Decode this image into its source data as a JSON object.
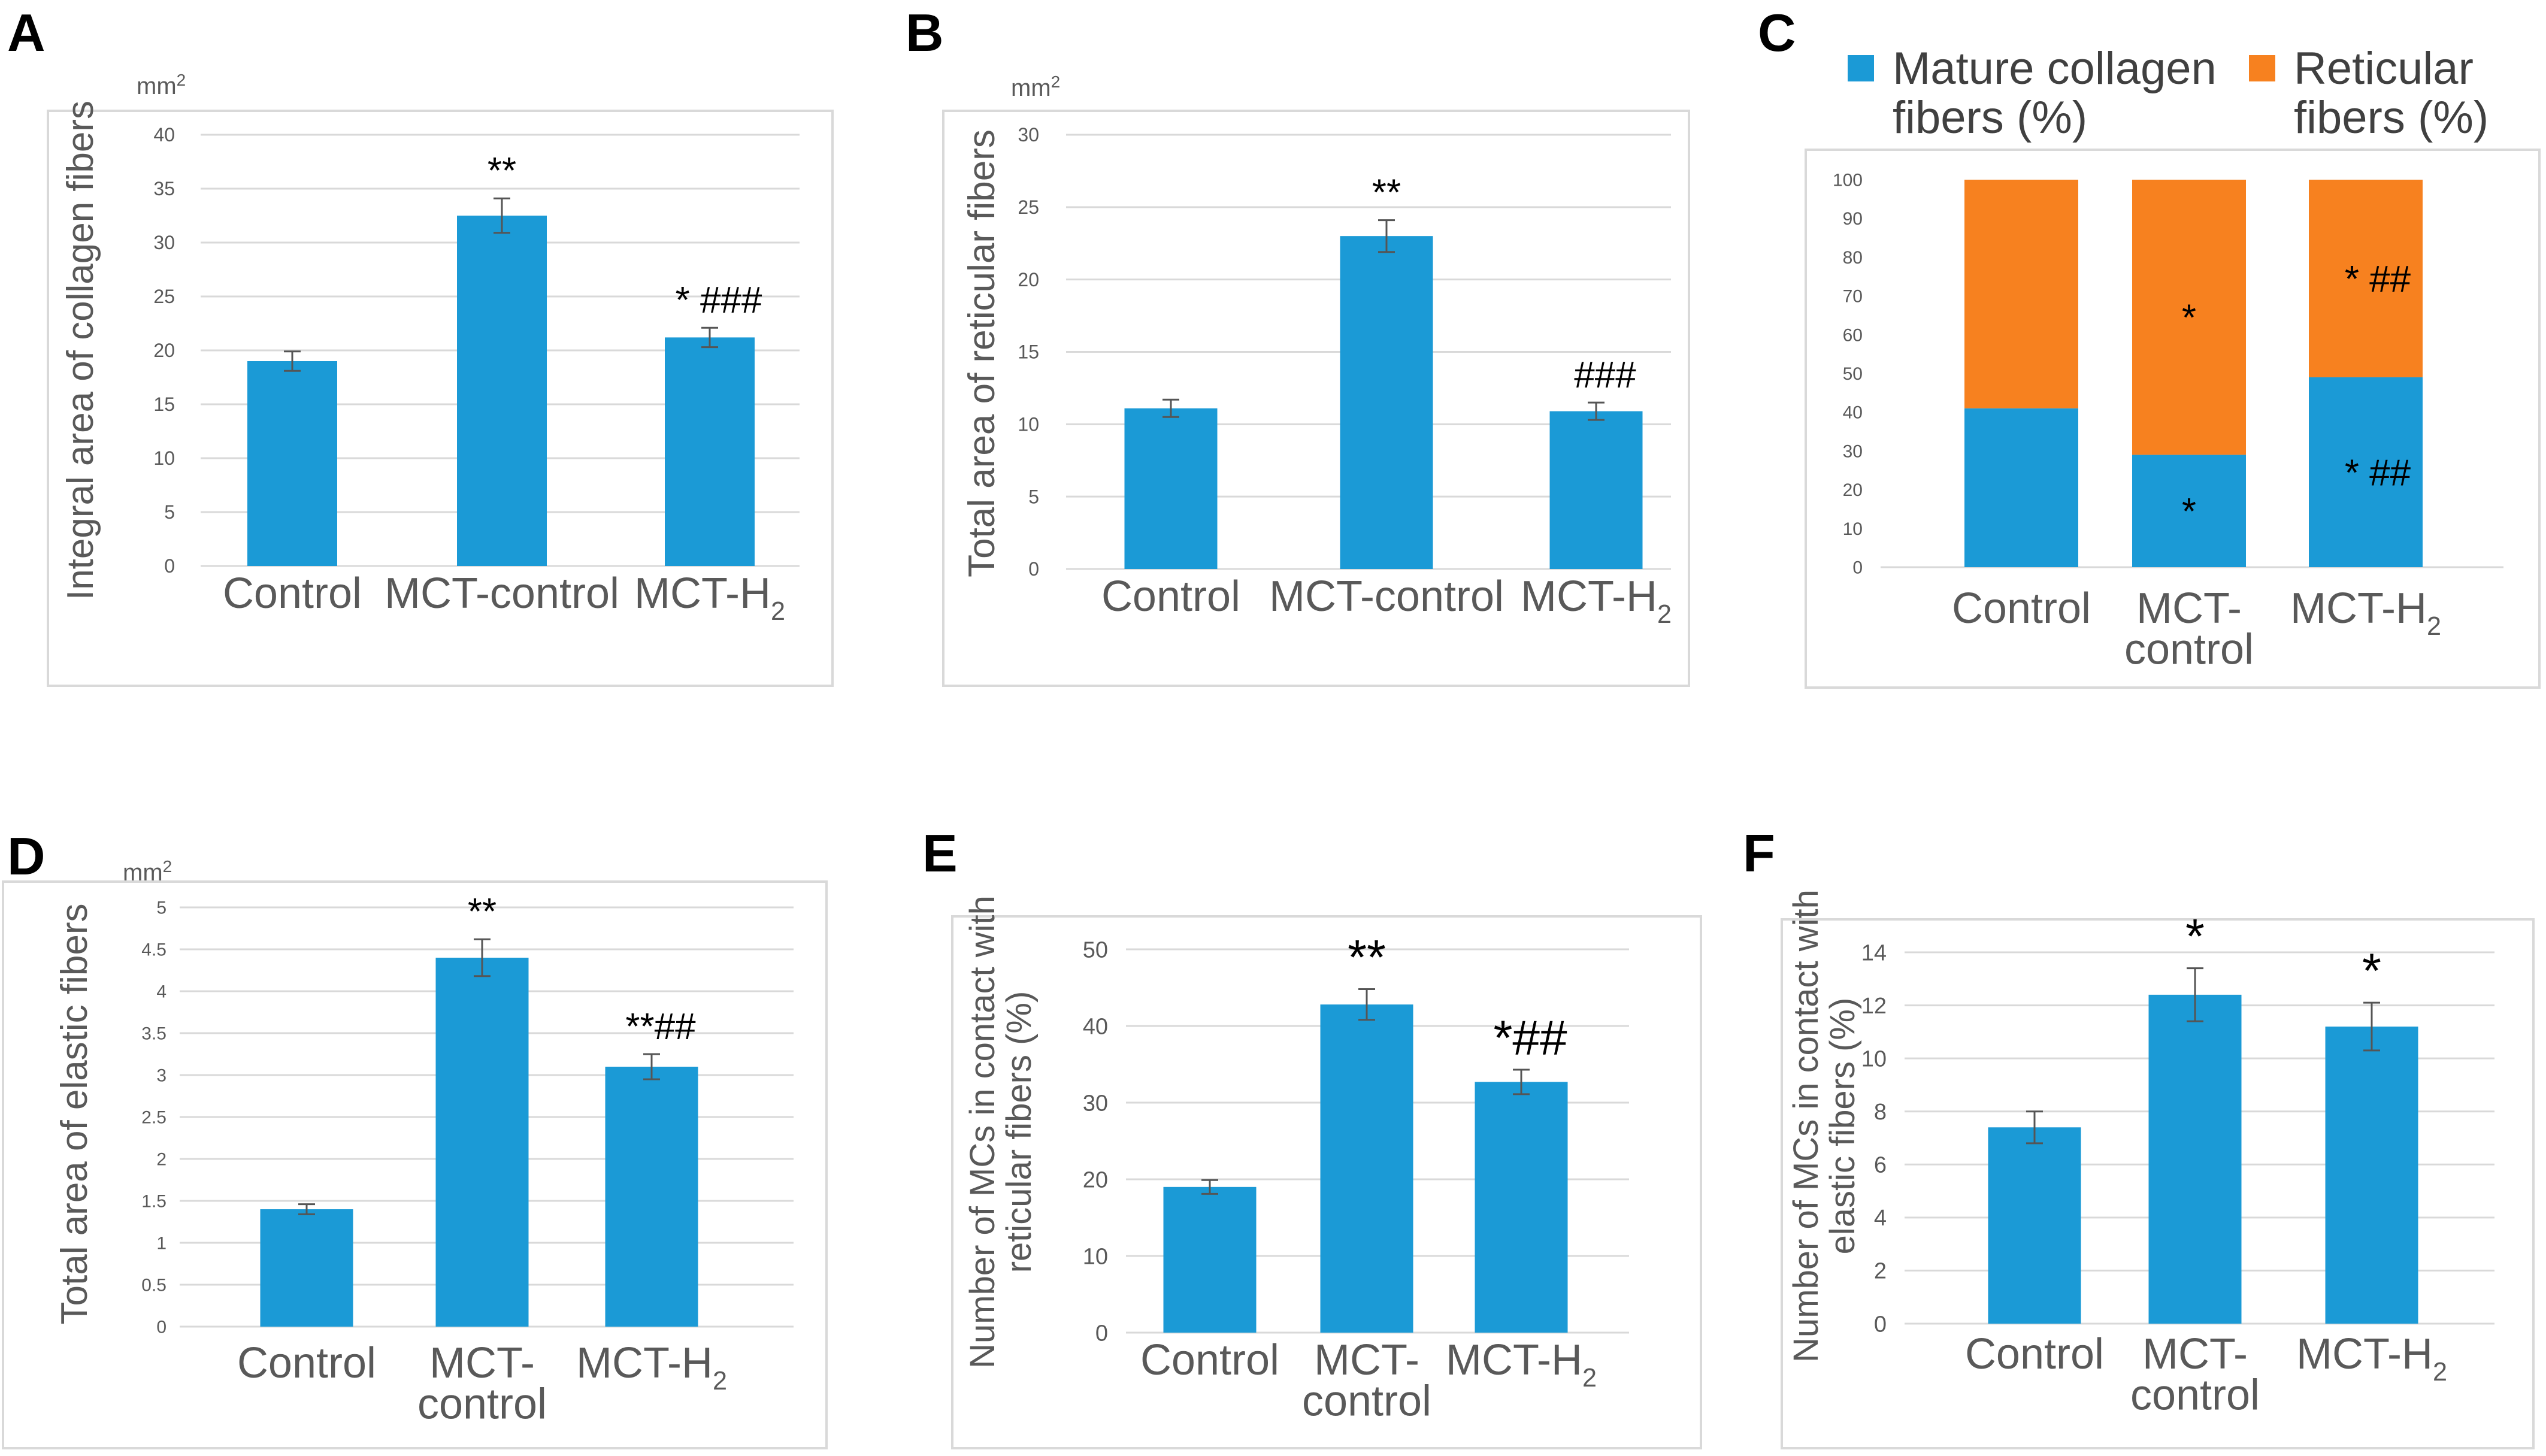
{
  "figure": {
    "colors": {
      "bar": "#1b9ad6",
      "reticular": "#f7811f",
      "frame": "#d9d9d9",
      "grid": "#d9d9d9",
      "text": "#000000",
      "axis_text": "#595959"
    }
  },
  "chart_data": [
    {
      "panel": "A",
      "type": "bar",
      "unit": "mm2",
      "ylabel": "Integral area of collagen fibers",
      "categories": [
        "Control",
        "MCT-control",
        "MCT-H2"
      ],
      "category_lines": [
        [
          "Control"
        ],
        [
          "MCT-control"
        ],
        [
          "MCT-H",
          "2"
        ]
      ],
      "values": [
        19,
        32.5,
        21.2
      ],
      "errors": [
        0.9,
        1.6,
        0.9
      ],
      "annotations": [
        "",
        "**",
        "* ###"
      ],
      "ylim": [
        0,
        40
      ],
      "yticks": [
        "0",
        "5",
        "10",
        "15",
        "20",
        "25",
        "30",
        "35",
        "40"
      ],
      "grid": true
    },
    {
      "panel": "B",
      "type": "bar",
      "unit": "mm2",
      "ylabel": "Total area of reticular fibers",
      "categories": [
        "Control",
        "MCT-control",
        "MCT-H2"
      ],
      "category_lines": [
        [
          "Control"
        ],
        [
          "MCT-control"
        ],
        [
          "MCT-H",
          "2"
        ]
      ],
      "values": [
        11.1,
        23,
        10.9
      ],
      "errors": [
        0.6,
        1.1,
        0.6
      ],
      "annotations": [
        "",
        "**",
        "###"
      ],
      "ylim": [
        0,
        30
      ],
      "yticks": [
        "0",
        "5",
        "10",
        "15",
        "20",
        "25",
        "30"
      ],
      "grid": true
    },
    {
      "panel": "C",
      "type": "stacked_bar",
      "categories": [
        "Control",
        "MCT-control",
        "MCT-H2"
      ],
      "category_lines": [
        [
          "Control"
        ],
        [
          "MCT-",
          "control"
        ],
        [
          "MCT-H",
          "2"
        ]
      ],
      "series": [
        {
          "name": "Mature collagen fibers (%)",
          "name_lines": [
            "Mature collagen",
            "fibers (%)"
          ],
          "values": [
            41,
            29,
            49
          ],
          "annotations": [
            "",
            "*",
            "* ##"
          ]
        },
        {
          "name": "Reticular fibers (%)",
          "name_lines": [
            "Reticular",
            "fibers (%)"
          ],
          "values": [
            59,
            71,
            51
          ],
          "annotations": [
            "",
            "*",
            "* ##"
          ]
        }
      ],
      "ylim": [
        0,
        100
      ],
      "yticks": [
        "0",
        "10",
        "20",
        "30",
        "40",
        "50",
        "60",
        "70",
        "80",
        "90",
        "100"
      ],
      "legend": "top",
      "grid": false
    },
    {
      "panel": "D",
      "type": "bar",
      "unit": "mm2",
      "ylabel": "Total area of elastic fibers",
      "categories": [
        "Control",
        "MCT-control",
        "MCT-H2"
      ],
      "category_lines": [
        [
          "Control"
        ],
        [
          "MCT-",
          "control"
        ],
        [
          "MCT-H",
          "2"
        ]
      ],
      "values": [
        1.4,
        4.4,
        3.1
      ],
      "errors": [
        0.06,
        0.22,
        0.15
      ],
      "annotations": [
        "",
        "**",
        "**##"
      ],
      "ylim": [
        0,
        5
      ],
      "yticks": [
        "0",
        "0.5",
        "1",
        "1.5",
        "2",
        "2.5",
        "3",
        "3.5",
        "4",
        "4.5",
        "5"
      ],
      "grid": true
    },
    {
      "panel": "E",
      "type": "bar",
      "ylabel_lines": [
        "Number of MCs in contact with",
        "reticular fibers (%)"
      ],
      "categories": [
        "Control",
        "MCT-control",
        "MCT-H2"
      ],
      "category_lines": [
        [
          "Control"
        ],
        [
          "MCT-",
          "control"
        ],
        [
          "MCT-H",
          "2"
        ]
      ],
      "values": [
        19,
        42.8,
        32.7
      ],
      "errors": [
        0.9,
        2.0,
        1.6
      ],
      "annotations": [
        "",
        "**",
        "*##"
      ],
      "ylim": [
        0,
        50
      ],
      "yticks": [
        "0",
        "10",
        "20",
        "30",
        "40",
        "50"
      ],
      "grid": true
    },
    {
      "panel": "F",
      "type": "bar",
      "ylabel_lines": [
        "Number of MCs in contact with",
        "elastic fibers (%)"
      ],
      "categories": [
        "Control",
        "MCT-control",
        "MCT-H2"
      ],
      "category_lines": [
        [
          "Control"
        ],
        [
          "MCT-",
          "control"
        ],
        [
          "MCT-H",
          "2"
        ]
      ],
      "values": [
        7.4,
        12.4,
        11.2
      ],
      "errors": [
        0.6,
        1.0,
        0.9
      ],
      "annotations": [
        "",
        "*",
        "*"
      ],
      "ylim": [
        0,
        14
      ],
      "yticks": [
        "0",
        "2",
        "4",
        "6",
        "8",
        "10",
        "12",
        "14"
      ],
      "grid": true
    }
  ]
}
